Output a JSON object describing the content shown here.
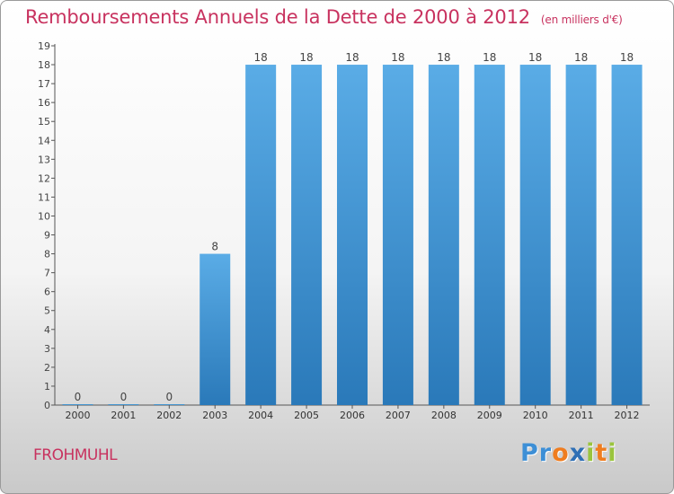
{
  "title": "Remboursements Annuels de la Dette de 2000 à 2012",
  "unit": "(en milliers d'€)",
  "commune": "FROHMUHL",
  "brand": {
    "letters": [
      "P",
      "r",
      "o",
      "x",
      "i",
      "t",
      "i"
    ]
  },
  "colors": {
    "bar_light": "#5aace6",
    "bar_dark": "#2a79b9",
    "title": "#c8325f",
    "axis": "#555555"
  },
  "chart_data": {
    "type": "bar",
    "title": "Remboursements Annuels de la Dette de 2000 à 2012",
    "ylabel": "en milliers d'€",
    "xlabel": "",
    "categories": [
      "2000",
      "2001",
      "2002",
      "2003",
      "2004",
      "2005",
      "2006",
      "2007",
      "2008",
      "2009",
      "2010",
      "2011",
      "2012"
    ],
    "values": [
      0,
      0,
      0,
      8,
      18,
      18,
      18,
      18,
      18,
      18,
      18,
      18,
      18
    ],
    "labels": [
      "0",
      "0",
      "0",
      "8",
      "18",
      "18",
      "18",
      "18",
      "18",
      "18",
      "18",
      "18",
      "18"
    ],
    "yticks": [
      0,
      1,
      2,
      3,
      4,
      5,
      6,
      7,
      8,
      9,
      10,
      11,
      12,
      13,
      14,
      15,
      16,
      17,
      18,
      19
    ],
    "ylim": [
      0,
      19
    ],
    "grid": false
  }
}
